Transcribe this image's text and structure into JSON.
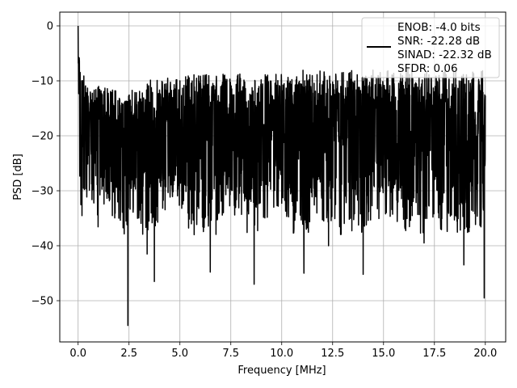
{
  "chart_data": {
    "type": "line",
    "title": "",
    "xlabel": "Frequency [MHz]",
    "ylabel": "PSD [dB]",
    "xlim": [
      -0.9,
      21.0
    ],
    "ylim": [
      -57.5,
      2.5
    ],
    "xticks": [
      0.0,
      2.5,
      5.0,
      7.5,
      10.0,
      12.5,
      15.0,
      17.5,
      20.0
    ],
    "xtick_labels": [
      "0.0",
      "2.5",
      "5.0",
      "7.5",
      "10.0",
      "12.5",
      "15.0",
      "17.5",
      "20.0"
    ],
    "yticks": [
      0,
      -10,
      -20,
      -30,
      -40,
      -50
    ],
    "ytick_labels": [
      "0",
      "−10",
      "−20",
      "−30",
      "−40",
      "−50"
    ],
    "grid": true,
    "line_color": "#000000",
    "legend_placement": "top-right",
    "legend_lines": [
      "ENOB: -4.0 bits",
      "SNR: -22.28 dB",
      "SINAD: -22.32 dB",
      "SFDR: 0.06"
    ],
    "series": [
      {
        "x": [
          0.0,
          0.05,
          0.12,
          0.2,
          0.3,
          0.5,
          0.7,
          1.0,
          1.5,
          2.0,
          2.2,
          2.4,
          2.45,
          2.5,
          2.7,
          3.0,
          3.3,
          3.5,
          3.7,
          4.0,
          4.5,
          5.0,
          5.5,
          6.0,
          6.5,
          7.0,
          7.5,
          8.0,
          8.6,
          9.0,
          9.5,
          10.0,
          10.5,
          11.0,
          11.5,
          12.0,
          12.5,
          13.0,
          13.5,
          14.0,
          14.5,
          15.0,
          15.5,
          16.0,
          16.5,
          17.0,
          17.5,
          18.0,
          18.5,
          19.0,
          19.5,
          19.9,
          20.0
        ],
        "y_max": [
          0.0,
          -4.5,
          -7.0,
          -9.5,
          -9.0,
          -10.5,
          -12.0,
          -11.0,
          -11.5,
          -12.0,
          -14.0,
          -13.5,
          -13.5,
          -12.5,
          -11.5,
          -12.0,
          -10.5,
          -10.0,
          -9.5,
          -10.0,
          -9.0,
          -9.5,
          -9.0,
          -8.5,
          -9.0,
          -8.5,
          -9.5,
          -8.5,
          -9.0,
          -8.5,
          -9.0,
          -8.5,
          -9.5,
          -8.0,
          -8.5,
          -8.0,
          -8.5,
          -8.5,
          -8.0,
          -8.5,
          -8.0,
          -8.0,
          -8.0,
          -7.5,
          -8.0,
          -8.5,
          -8.0,
          -7.5,
          -8.0,
          -8.0,
          -8.5,
          -8.0,
          -10.0
        ],
        "y_min": [
          -5.0,
          -35.0,
          -33.0,
          -37.5,
          -33.5,
          -36.0,
          -34.0,
          -37.0,
          -35.0,
          -36.0,
          -39.0,
          -38.0,
          -54.5,
          -37.0,
          -34.0,
          -36.0,
          -41.5,
          -36.5,
          -46.5,
          -34.5,
          -34.0,
          -33.0,
          -37.5,
          -36.0,
          -44.5,
          -35.0,
          -33.5,
          -38.0,
          -47.0,
          -36.0,
          -35.0,
          -33.5,
          -36.5,
          -45.0,
          -34.5,
          -36.0,
          -35.5,
          -39.0,
          -40.0,
          -45.0,
          -36.0,
          -37.0,
          -35.0,
          -38.0,
          -36.5,
          -39.0,
          -35.0,
          -38.5,
          -36.0,
          -43.5,
          -36.5,
          -49.5,
          -20.0
        ],
        "typical_range": [
          -30,
          -10
        ]
      }
    ],
    "spikes": [
      {
        "x": 0.0,
        "y": 0.0
      },
      {
        "x": 2.45,
        "y": -54.5
      },
      {
        "x": 3.4,
        "y": -41.5
      },
      {
        "x": 3.75,
        "y": -46.5
      },
      {
        "x": 5.7,
        "y": -38.0
      },
      {
        "x": 6.5,
        "y": -44.8
      },
      {
        "x": 8.65,
        "y": -47.0
      },
      {
        "x": 11.1,
        "y": -45.0
      },
      {
        "x": 12.3,
        "y": -40.0
      },
      {
        "x": 14.0,
        "y": -45.2
      },
      {
        "x": 17.0,
        "y": -39.5
      },
      {
        "x": 18.95,
        "y": -43.5
      },
      {
        "x": 19.95,
        "y": -49.5
      }
    ]
  }
}
